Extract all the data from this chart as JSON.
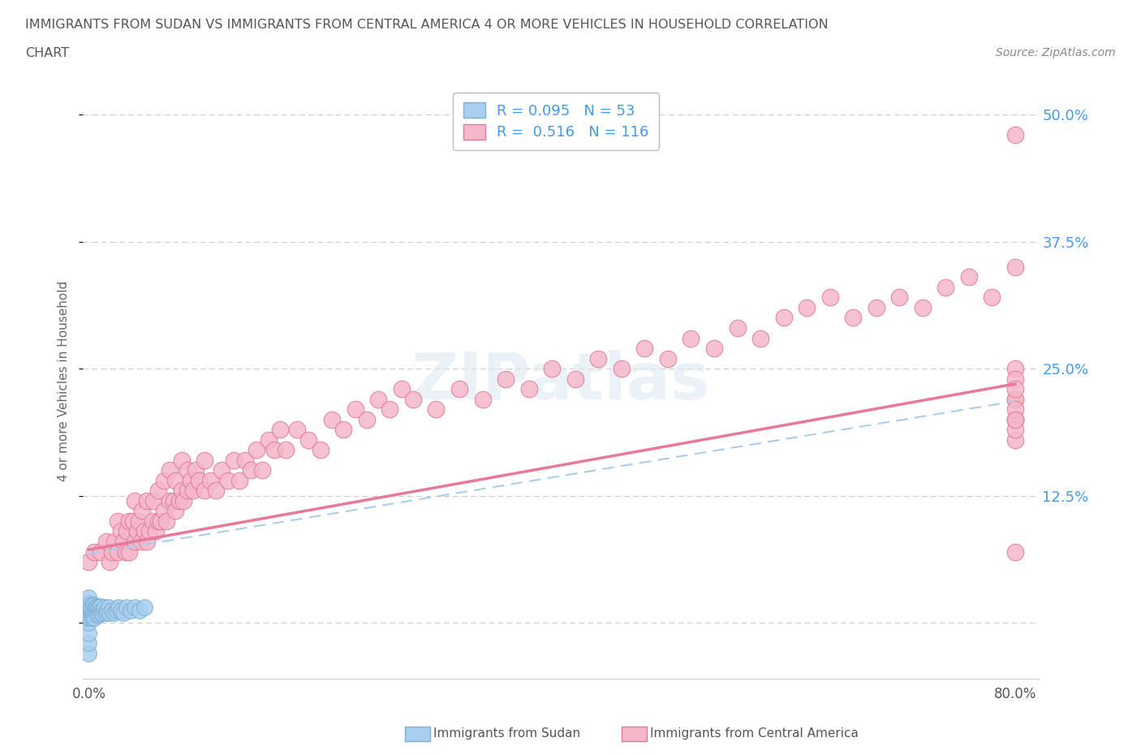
{
  "title_line1": "IMMIGRANTS FROM SUDAN VS IMMIGRANTS FROM CENTRAL AMERICA 4 OR MORE VEHICLES IN HOUSEHOLD CORRELATION",
  "title_line2": "CHART",
  "source": "Source: ZipAtlas.com",
  "ylabel": "4 or more Vehicles in Household",
  "xlim": [
    -0.005,
    0.82
  ],
  "ylim": [
    -0.055,
    0.53
  ],
  "xticks": [
    0.0,
    0.1,
    0.2,
    0.3,
    0.4,
    0.5,
    0.6,
    0.7,
    0.8
  ],
  "ytick_positions": [
    0.0,
    0.125,
    0.25,
    0.375,
    0.5
  ],
  "ytick_labels": [
    "",
    "12.5%",
    "25.0%",
    "37.5%",
    "50.0%"
  ],
  "sudan_color": "#aacfee",
  "sudan_edge_color": "#7bafd4",
  "central_color": "#f5b8c8",
  "central_edge_color": "#e07898",
  "central_trend_color": "#e8799a",
  "sudan_trend_color": "#aaccee",
  "R_sudan": 0.095,
  "N_sudan": 53,
  "R_central": 0.516,
  "N_central": 116,
  "watermark": "ZIPatlas",
  "sudan_x": [
    0.0,
    0.0,
    0.0,
    0.0,
    0.0,
    0.0,
    0.0,
    0.0,
    0.0,
    0.0,
    0.001,
    0.001,
    0.001,
    0.002,
    0.002,
    0.002,
    0.003,
    0.003,
    0.003,
    0.004,
    0.004,
    0.005,
    0.005,
    0.005,
    0.006,
    0.006,
    0.007,
    0.007,
    0.008,
    0.008,
    0.009,
    0.009,
    0.01,
    0.01,
    0.011,
    0.012,
    0.013,
    0.014,
    0.015,
    0.016,
    0.017,
    0.018,
    0.02,
    0.022,
    0.024,
    0.026,
    0.028,
    0.03,
    0.033,
    0.036,
    0.04,
    0.044,
    0.048
  ],
  "sudan_y": [
    -0.03,
    -0.02,
    -0.01,
    0.0,
    0.005,
    0.01,
    0.015,
    0.018,
    0.02,
    0.025,
    0.005,
    0.01,
    0.018,
    0.008,
    0.012,
    0.015,
    0.005,
    0.01,
    0.018,
    0.008,
    0.015,
    0.005,
    0.012,
    0.018,
    0.01,
    0.016,
    0.008,
    0.016,
    0.01,
    0.015,
    0.008,
    0.015,
    0.01,
    0.016,
    0.012,
    0.01,
    0.012,
    0.015,
    0.01,
    0.012,
    0.015,
    0.01,
    0.012,
    0.01,
    0.012,
    0.015,
    0.012,
    0.01,
    0.015,
    0.012,
    0.015,
    0.012,
    0.015
  ],
  "central_x": [
    0.0,
    0.005,
    0.01,
    0.015,
    0.018,
    0.02,
    0.022,
    0.025,
    0.025,
    0.028,
    0.03,
    0.032,
    0.033,
    0.035,
    0.035,
    0.038,
    0.04,
    0.04,
    0.042,
    0.043,
    0.045,
    0.046,
    0.048,
    0.05,
    0.05,
    0.052,
    0.055,
    0.056,
    0.058,
    0.06,
    0.06,
    0.062,
    0.065,
    0.065,
    0.067,
    0.07,
    0.07,
    0.073,
    0.075,
    0.075,
    0.078,
    0.08,
    0.08,
    0.082,
    0.085,
    0.085,
    0.088,
    0.09,
    0.092,
    0.095,
    0.1,
    0.1,
    0.105,
    0.11,
    0.115,
    0.12,
    0.125,
    0.13,
    0.135,
    0.14,
    0.145,
    0.15,
    0.155,
    0.16,
    0.165,
    0.17,
    0.18,
    0.19,
    0.2,
    0.21,
    0.22,
    0.23,
    0.24,
    0.25,
    0.26,
    0.27,
    0.28,
    0.3,
    0.32,
    0.34,
    0.36,
    0.38,
    0.4,
    0.42,
    0.44,
    0.46,
    0.48,
    0.5,
    0.52,
    0.54,
    0.56,
    0.58,
    0.6,
    0.62,
    0.64,
    0.66,
    0.68,
    0.7,
    0.72,
    0.74,
    0.76,
    0.78,
    0.8,
    0.8,
    0.8,
    0.8,
    0.8,
    0.8,
    0.8,
    0.8,
    0.8,
    0.8,
    0.8,
    0.8,
    0.8,
    0.8
  ],
  "central_y": [
    0.06,
    0.07,
    0.07,
    0.08,
    0.06,
    0.07,
    0.08,
    0.07,
    0.1,
    0.09,
    0.08,
    0.07,
    0.09,
    0.1,
    0.07,
    0.1,
    0.08,
    0.12,
    0.09,
    0.1,
    0.08,
    0.11,
    0.09,
    0.08,
    0.12,
    0.09,
    0.1,
    0.12,
    0.09,
    0.1,
    0.13,
    0.1,
    0.11,
    0.14,
    0.1,
    0.12,
    0.15,
    0.12,
    0.11,
    0.14,
    0.12,
    0.13,
    0.16,
    0.12,
    0.13,
    0.15,
    0.14,
    0.13,
    0.15,
    0.14,
    0.13,
    0.16,
    0.14,
    0.13,
    0.15,
    0.14,
    0.16,
    0.14,
    0.16,
    0.15,
    0.17,
    0.15,
    0.18,
    0.17,
    0.19,
    0.17,
    0.19,
    0.18,
    0.17,
    0.2,
    0.19,
    0.21,
    0.2,
    0.22,
    0.21,
    0.23,
    0.22,
    0.21,
    0.23,
    0.22,
    0.24,
    0.23,
    0.25,
    0.24,
    0.26,
    0.25,
    0.27,
    0.26,
    0.28,
    0.27,
    0.29,
    0.28,
    0.3,
    0.31,
    0.32,
    0.3,
    0.31,
    0.32,
    0.31,
    0.33,
    0.34,
    0.32,
    0.35,
    0.22,
    0.2,
    0.18,
    0.25,
    0.22,
    0.2,
    0.24,
    0.21,
    0.19,
    0.23,
    0.2,
    0.07,
    0.48
  ],
  "trend_central_x0": 0.0,
  "trend_central_y0": 0.072,
  "trend_central_x1": 0.8,
  "trend_central_y1": 0.235,
  "trend_sudan_x0": 0.0,
  "trend_sudan_y0": 0.068,
  "trend_sudan_x1": 0.8,
  "trend_sudan_y1": 0.218
}
